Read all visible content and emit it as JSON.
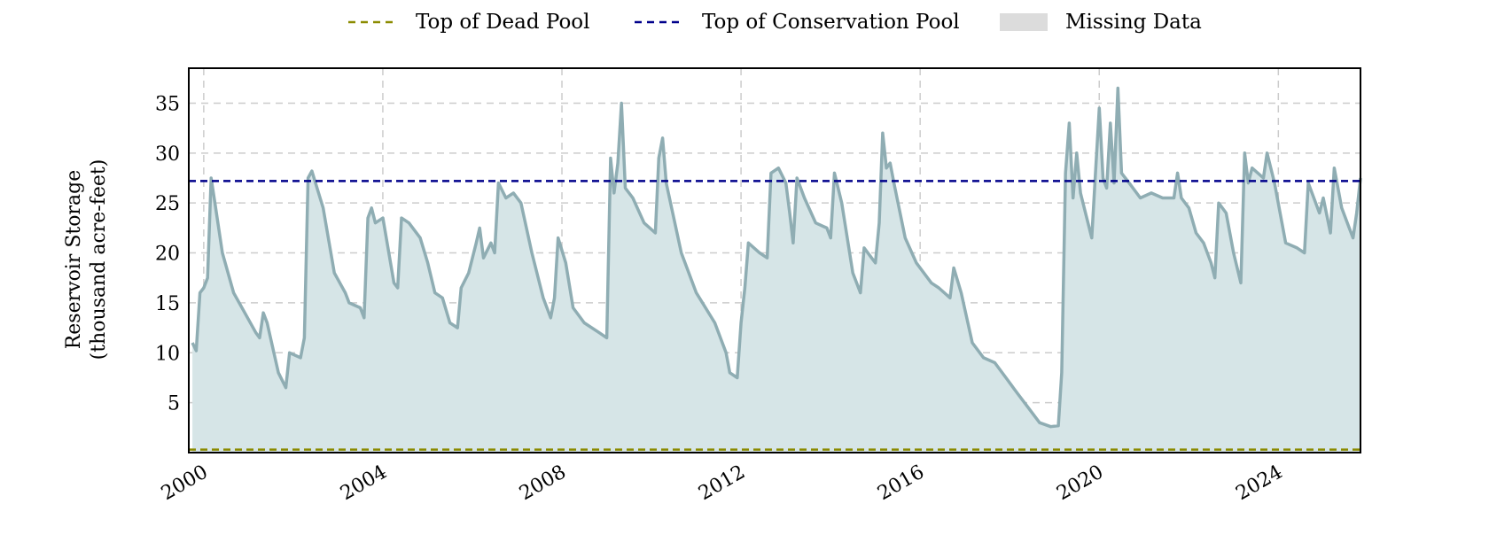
{
  "chart_data": {
    "type": "area",
    "ylabel": "Reservoir Storage",
    "ylabel_units": "(thousand acre-feet)",
    "xlabel": "",
    "title": "",
    "x_ticks": [
      "2000",
      "2004",
      "2008",
      "2012",
      "2016",
      "2020",
      "2024"
    ],
    "y_ticks": [
      5,
      10,
      15,
      20,
      25,
      30,
      35
    ],
    "xlim": [
      "1999-09-01",
      "2025-11-01"
    ],
    "ylim": [
      0,
      38.5
    ],
    "grid": true,
    "legend_position": "top-center",
    "legend": [
      {
        "label": "Top of Dead Pool",
        "style": "dashed-line",
        "color": "#8b8b00"
      },
      {
        "label": "Top of Conservation Pool",
        "style": "dashed-line",
        "color": "#00008b"
      },
      {
        "label": "Missing Data",
        "style": "patch",
        "color": "#dcdcdc"
      }
    ],
    "reference_lines": [
      {
        "name": "Top of Dead Pool",
        "y": 0.3,
        "color": "#8b8b00"
      },
      {
        "name": "Top of Conservation Pool",
        "y": 27.2,
        "color": "#00008b"
      }
    ],
    "series": [
      {
        "line_color": "#8fadb3",
        "fill_color": "#d6e5e7",
        "points": [
          [
            "1999-10-01",
            11.0
          ],
          [
            "1999-11-01",
            10.2
          ],
          [
            "1999-12-01",
            16.0
          ],
          [
            "2000-01-01",
            16.5
          ],
          [
            "2000-02-01",
            17.5
          ],
          [
            "2000-03-01",
            27.5
          ],
          [
            "2000-04-01",
            25.0
          ],
          [
            "2000-06-01",
            20.0
          ],
          [
            "2000-09-01",
            16.0
          ],
          [
            "2000-12-01",
            14.0
          ],
          [
            "2001-03-01",
            12.0
          ],
          [
            "2001-04-01",
            11.5
          ],
          [
            "2001-05-01",
            14.0
          ],
          [
            "2001-06-01",
            13.0
          ],
          [
            "2001-09-01",
            8.0
          ],
          [
            "2001-11-01",
            6.5
          ],
          [
            "2001-12-01",
            10.0
          ],
          [
            "2002-03-01",
            9.5
          ],
          [
            "2002-04-01",
            11.5
          ],
          [
            "2002-05-01",
            27.5
          ],
          [
            "2002-06-01",
            28.2
          ],
          [
            "2002-07-01",
            27.0
          ],
          [
            "2002-09-01",
            24.5
          ],
          [
            "2002-12-01",
            18.0
          ],
          [
            "2003-03-01",
            16.0
          ],
          [
            "2003-04-01",
            15.0
          ],
          [
            "2003-07-01",
            14.5
          ],
          [
            "2003-08-01",
            13.5
          ],
          [
            "2003-09-01",
            23.5
          ],
          [
            "2003-10-01",
            24.5
          ],
          [
            "2003-11-01",
            23.0
          ],
          [
            "2004-01-01",
            23.5
          ],
          [
            "2004-04-01",
            17.0
          ],
          [
            "2004-05-01",
            16.5
          ],
          [
            "2004-06-01",
            23.5
          ],
          [
            "2004-08-01",
            23.0
          ],
          [
            "2004-11-01",
            21.5
          ],
          [
            "2005-01-01",
            19.0
          ],
          [
            "2005-03-01",
            16.0
          ],
          [
            "2005-05-01",
            15.5
          ],
          [
            "2005-07-01",
            13.0
          ],
          [
            "2005-09-01",
            12.5
          ],
          [
            "2005-10-01",
            16.5
          ],
          [
            "2005-12-01",
            18.0
          ],
          [
            "2006-02-01",
            21.0
          ],
          [
            "2006-03-01",
            22.5
          ],
          [
            "2006-04-01",
            19.5
          ],
          [
            "2006-06-01",
            21.0
          ],
          [
            "2006-07-01",
            20.0
          ],
          [
            "2006-08-01",
            27.0
          ],
          [
            "2006-10-01",
            25.5
          ],
          [
            "2006-12-01",
            26.0
          ],
          [
            "2007-02-01",
            25.0
          ],
          [
            "2007-05-01",
            20.0
          ],
          [
            "2007-08-01",
            15.5
          ],
          [
            "2007-10-01",
            13.5
          ],
          [
            "2007-11-01",
            15.5
          ],
          [
            "2007-12-01",
            21.5
          ],
          [
            "2008-02-01",
            19.0
          ],
          [
            "2008-04-01",
            14.5
          ],
          [
            "2008-07-01",
            13.0
          ],
          [
            "2008-11-01",
            12.0
          ],
          [
            "2009-01-01",
            11.5
          ],
          [
            "2009-02-01",
            29.5
          ],
          [
            "2009-03-01",
            26.0
          ],
          [
            "2009-04-01",
            29.0
          ],
          [
            "2009-05-01",
            35.0
          ],
          [
            "2009-06-01",
            26.5
          ],
          [
            "2009-08-01",
            25.5
          ],
          [
            "2009-11-01",
            23.0
          ],
          [
            "2010-02-01",
            22.0
          ],
          [
            "2010-03-01",
            29.5
          ],
          [
            "2010-04-01",
            31.5
          ],
          [
            "2010-05-01",
            27.0
          ],
          [
            "2010-09-01",
            20.0
          ],
          [
            "2011-01-01",
            16.0
          ],
          [
            "2011-06-01",
            13.0
          ],
          [
            "2011-09-01",
            10.0
          ],
          [
            "2011-10-01",
            8.0
          ],
          [
            "2011-12-01",
            7.5
          ],
          [
            "2012-01-01",
            13.0
          ],
          [
            "2012-02-01",
            16.5
          ],
          [
            "2012-03-01",
            21.0
          ],
          [
            "2012-06-01",
            20.0
          ],
          [
            "2012-08-01",
            19.5
          ],
          [
            "2012-09-01",
            28.0
          ],
          [
            "2012-11-01",
            28.5
          ],
          [
            "2013-01-01",
            27.0
          ],
          [
            "2013-02-01",
            24.0
          ],
          [
            "2013-03-01",
            21.0
          ],
          [
            "2013-04-01",
            27.5
          ],
          [
            "2013-06-01",
            25.5
          ],
          [
            "2013-09-01",
            23.0
          ],
          [
            "2013-12-01",
            22.5
          ],
          [
            "2014-01-01",
            21.5
          ],
          [
            "2014-02-01",
            28.0
          ],
          [
            "2014-04-01",
            25.0
          ],
          [
            "2014-07-01",
            18.0
          ],
          [
            "2014-09-01",
            16.0
          ],
          [
            "2014-10-01",
            20.5
          ],
          [
            "2014-12-01",
            19.5
          ],
          [
            "2015-01-01",
            19.0
          ],
          [
            "2015-02-01",
            23.0
          ],
          [
            "2015-03-01",
            32.0
          ],
          [
            "2015-04-01",
            28.5
          ],
          [
            "2015-05-01",
            29.0
          ],
          [
            "2015-06-01",
            27.0
          ],
          [
            "2015-09-01",
            21.5
          ],
          [
            "2015-12-01",
            19.0
          ],
          [
            "2016-04-01",
            17.0
          ],
          [
            "2016-06-01",
            16.5
          ],
          [
            "2016-09-01",
            15.5
          ],
          [
            "2016-10-01",
            18.5
          ],
          [
            "2016-12-01",
            16.0
          ],
          [
            "2017-03-01",
            11.0
          ],
          [
            "2017-06-01",
            9.5
          ],
          [
            "2017-09-01",
            9.0
          ],
          [
            "2017-12-01",
            7.5
          ],
          [
            "2018-03-01",
            6.0
          ],
          [
            "2018-06-01",
            4.5
          ],
          [
            "2018-09-01",
            3.0
          ],
          [
            "2018-12-01",
            2.6
          ],
          [
            "2019-02-01",
            2.7
          ],
          [
            "2019-03-01",
            8.0
          ],
          [
            "2019-04-01",
            28.0
          ],
          [
            "2019-05-01",
            33.0
          ],
          [
            "2019-06-01",
            25.5
          ],
          [
            "2019-07-01",
            30.0
          ],
          [
            "2019-08-01",
            26.0
          ],
          [
            "2019-11-01",
            21.5
          ],
          [
            "2019-12-01",
            28.0
          ],
          [
            "2020-01-01",
            34.5
          ],
          [
            "2020-02-01",
            27.5
          ],
          [
            "2020-03-01",
            26.5
          ],
          [
            "2020-04-01",
            33.0
          ],
          [
            "2020-05-01",
            27.0
          ],
          [
            "2020-06-01",
            36.5
          ],
          [
            "2020-07-01",
            28.0
          ],
          [
            "2020-09-01",
            27.0
          ],
          [
            "2020-12-01",
            25.5
          ],
          [
            "2021-03-01",
            26.0
          ],
          [
            "2021-06-01",
            25.5
          ],
          [
            "2021-09-01",
            25.5
          ],
          [
            "2021-10-01",
            28.0
          ],
          [
            "2021-11-01",
            25.5
          ],
          [
            "2022-01-01",
            24.5
          ],
          [
            "2022-03-01",
            22.0
          ],
          [
            "2022-05-01",
            21.0
          ],
          [
            "2022-07-01",
            19.0
          ],
          [
            "2022-08-01",
            17.5
          ],
          [
            "2022-09-01",
            25.0
          ],
          [
            "2022-11-01",
            24.0
          ],
          [
            "2023-01-01",
            20.0
          ],
          [
            "2023-03-01",
            17.0
          ],
          [
            "2023-04-01",
            30.0
          ],
          [
            "2023-05-01",
            27.0
          ],
          [
            "2023-06-01",
            28.5
          ],
          [
            "2023-09-01",
            27.5
          ],
          [
            "2023-10-01",
            30.0
          ],
          [
            "2023-12-01",
            27.0
          ],
          [
            "2024-03-01",
            21.0
          ],
          [
            "2024-06-01",
            20.5
          ],
          [
            "2024-08-01",
            20.0
          ],
          [
            "2024-09-01",
            27.0
          ],
          [
            "2024-11-01",
            25.0
          ],
          [
            "2024-12-01",
            24.0
          ],
          [
            "2025-01-01",
            25.5
          ],
          [
            "2025-03-01",
            22.0
          ],
          [
            "2025-04-01",
            28.5
          ],
          [
            "2025-06-01",
            24.5
          ],
          [
            "2025-08-01",
            22.5
          ],
          [
            "2025-09-01",
            21.5
          ],
          [
            "2025-10-01",
            24.0
          ],
          [
            "2025-11-01",
            27.5
          ]
        ]
      }
    ]
  }
}
